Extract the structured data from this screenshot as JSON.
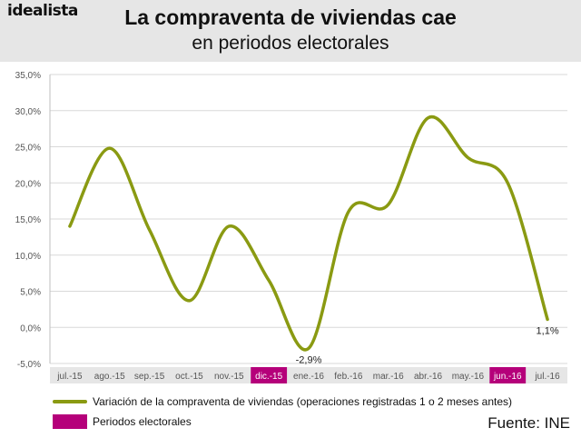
{
  "header": {
    "logo": "idealista",
    "title": "La compraventa de viviendas cae",
    "subtitle": "en periodos electorales"
  },
  "chart_data": {
    "type": "line",
    "categories": [
      "jul.-15",
      "ago.-15",
      "sep.-15",
      "oct.-15",
      "nov.-15",
      "dic.-15",
      "ene.-16",
      "feb.-16",
      "mar.-16",
      "abr.-16",
      "may.-16",
      "jun.-16",
      "jul.-16"
    ],
    "series": [
      {
        "name": "Variación de la compraventa de viviendas (operaciones registradas 1 o 2 meses antes)",
        "values": [
          14.0,
          24.8,
          13.5,
          3.7,
          14.0,
          6.5,
          -2.9,
          16.0,
          17.0,
          29.0,
          23.5,
          20.0,
          1.1
        ],
        "color": "#8a9a12"
      }
    ],
    "yticks": [
      "35,0%",
      "30,0%",
      "25,0%",
      "20,0%",
      "15,0%",
      "10,0%",
      "5,0%",
      "0,0%",
      "-5,0%"
    ],
    "ylim": [
      -5,
      35
    ],
    "highlighted_categories": [
      "dic.-15",
      "jun.-16"
    ],
    "highlight_color": "#b5007a",
    "data_labels": [
      {
        "category": "ene.-16",
        "text": "-2,9%"
      },
      {
        "category": "jul.-16",
        "text": "1,1%"
      }
    ],
    "grid": true
  },
  "legend": {
    "line_label": "Variación de la compraventa de viviendas (operaciones registradas 1 o 2 meses antes)",
    "box_label": "Periodos electorales"
  },
  "source": "Fuente: INE"
}
